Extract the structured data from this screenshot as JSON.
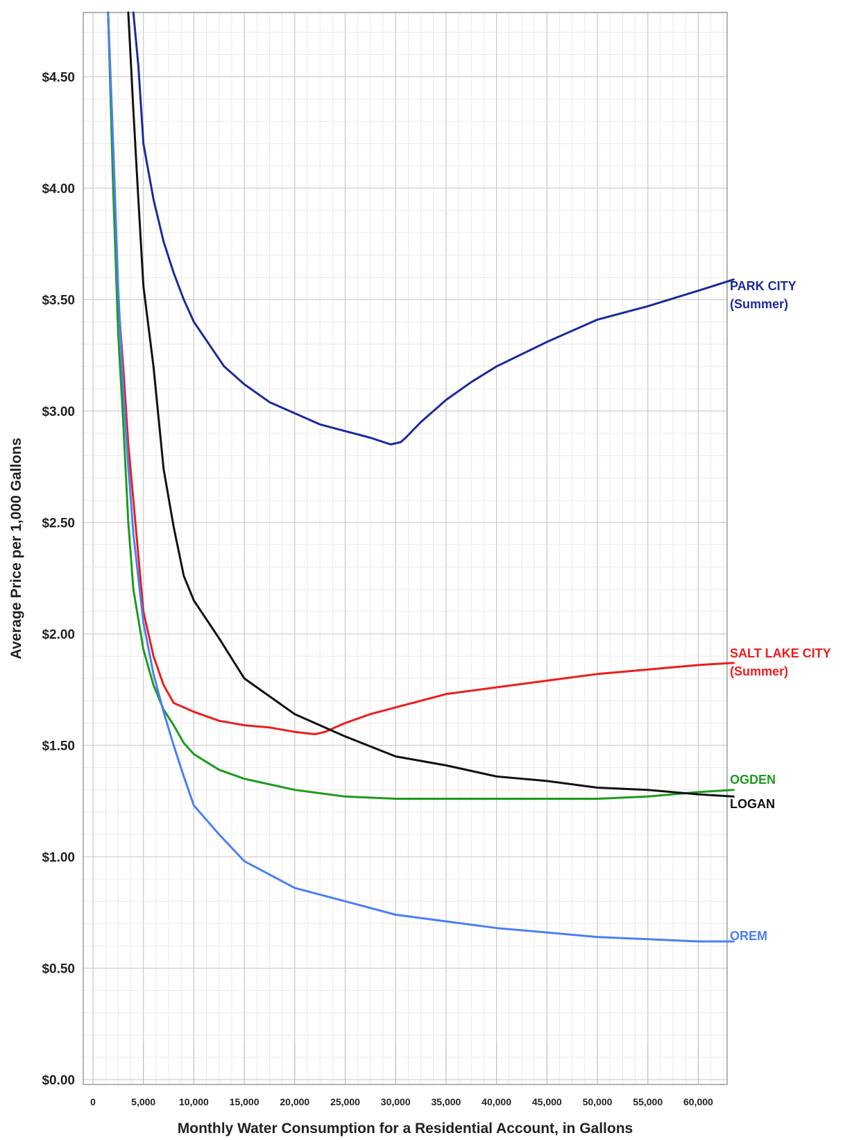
{
  "chart_data": {
    "type": "line",
    "title": "",
    "xlabel": "Monthly Water Consumption for a Residential Account, in Gallons",
    "ylabel": "Average Price per 1,000 Gallons",
    "xlim": [
      0,
      63500
    ],
    "ylim": [
      0,
      4.8
    ],
    "grid": true,
    "x_tick_labels": [
      "0",
      "5,000",
      "10,000",
      "15,000",
      "20,000",
      "25,000",
      "30,000",
      "35,000",
      "40,000",
      "45,000",
      "50,000",
      "55,000",
      "60,000"
    ],
    "y_tick_labels": [
      "$0.00",
      "$0.50",
      "$1.00",
      "$1.50",
      "$2.00",
      "$2.50",
      "$3.00",
      "$3.50",
      "$4.00",
      "$4.50"
    ],
    "series": [
      {
        "name": "PARK CITY",
        "label_line2": "(Summer)",
        "color": "#1c2a9c",
        "x": [
          4000,
          4500,
          5000,
          6000,
          7000,
          8000,
          9000,
          10000,
          11500,
          13000,
          15000,
          17500,
          20000,
          22500,
          25000,
          27500,
          29500,
          30500,
          31000,
          32500,
          35000,
          37500,
          40000,
          45000,
          50000,
          55000,
          60000,
          63500
        ],
        "values": [
          4.8,
          4.55,
          4.2,
          3.95,
          3.76,
          3.62,
          3.5,
          3.4,
          3.3,
          3.2,
          3.12,
          3.04,
          2.99,
          2.94,
          2.91,
          2.88,
          2.85,
          2.86,
          2.88,
          2.95,
          3.05,
          3.13,
          3.2,
          3.31,
          3.41,
          3.47,
          3.54,
          3.59
        ]
      },
      {
        "name": "SALT LAKE CITY",
        "label_line2": "(Summer)",
        "color": "#ee1c1c",
        "x": [
          1500,
          2000,
          2500,
          3000,
          3500,
          4000,
          5000,
          6000,
          7000,
          8000,
          10000,
          12500,
          15000,
          17500,
          20000,
          22000,
          23000,
          25000,
          27500,
          30000,
          32500,
          35000,
          40000,
          45000,
          50000,
          55000,
          60000,
          63500
        ],
        "values": [
          4.8,
          4.1,
          3.5,
          3.2,
          2.85,
          2.6,
          2.1,
          1.9,
          1.77,
          1.69,
          1.65,
          1.61,
          1.59,
          1.58,
          1.56,
          1.55,
          1.56,
          1.6,
          1.64,
          1.67,
          1.7,
          1.73,
          1.76,
          1.79,
          1.82,
          1.84,
          1.86,
          1.87
        ]
      },
      {
        "name": "OGDEN",
        "color": "#1e9a1e",
        "x": [
          1500,
          2000,
          2500,
          3000,
          3500,
          4000,
          5000,
          6000,
          7000,
          8000,
          9000,
          10000,
          12500,
          15000,
          20000,
          25000,
          30000,
          35000,
          40000,
          45000,
          50000,
          55000,
          60000,
          63500
        ],
        "values": [
          4.8,
          4.0,
          3.35,
          2.95,
          2.5,
          2.2,
          1.93,
          1.77,
          1.66,
          1.59,
          1.51,
          1.46,
          1.39,
          1.35,
          1.3,
          1.27,
          1.26,
          1.26,
          1.26,
          1.26,
          1.26,
          1.27,
          1.29,
          1.3
        ]
      },
      {
        "name": "LOGAN",
        "color": "#111111",
        "x": [
          3500,
          4000,
          4500,
          5000,
          6000,
          7000,
          8000,
          9000,
          10000,
          12500,
          15000,
          17500,
          20000,
          25000,
          30000,
          35000,
          40000,
          45000,
          50000,
          55000,
          60000,
          63500
        ],
        "values": [
          4.8,
          4.35,
          3.95,
          3.56,
          3.2,
          2.74,
          2.48,
          2.26,
          2.15,
          1.98,
          1.8,
          1.72,
          1.64,
          1.54,
          1.45,
          1.41,
          1.36,
          1.34,
          1.31,
          1.3,
          1.28,
          1.27
        ]
      },
      {
        "name": "OREM",
        "color": "#4a7ff5",
        "x": [
          1500,
          2000,
          2500,
          3000,
          3500,
          4000,
          5000,
          6000,
          7000,
          8000,
          9000,
          10000,
          12500,
          15000,
          20000,
          25000,
          30000,
          35000,
          40000,
          45000,
          50000,
          55000,
          60000,
          63500
        ],
        "values": [
          4.8,
          4.2,
          3.55,
          3.1,
          2.75,
          2.45,
          2.05,
          1.82,
          1.65,
          1.5,
          1.36,
          1.23,
          1.1,
          0.98,
          0.86,
          0.8,
          0.74,
          0.71,
          0.68,
          0.66,
          0.64,
          0.63,
          0.62,
          0.62
        ]
      }
    ]
  }
}
